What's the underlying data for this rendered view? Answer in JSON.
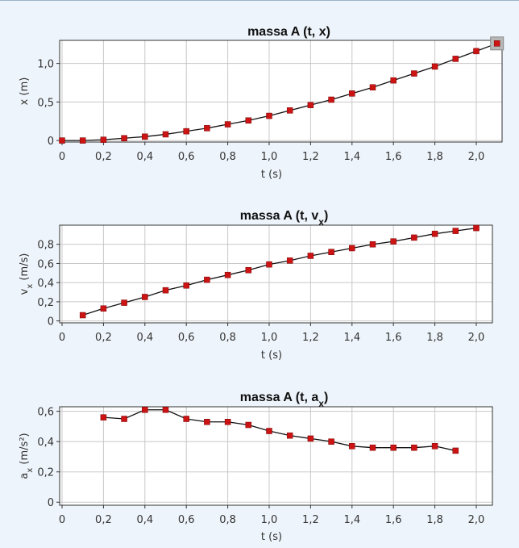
{
  "chart_data": [
    {
      "type": "line",
      "title_main": "massa A (t, x)",
      "title_sub": "",
      "xlabel": "t (s)",
      "ylabel_main": "x (m)",
      "ylabel_sub": "",
      "xlim": [
        0,
        2.1
      ],
      "ylim": [
        -0.02,
        1.3
      ],
      "xticks": [
        "0",
        "0,2",
        "0,4",
        "0,6",
        "0,8",
        "1,0",
        "1,2",
        "1,4",
        "1,6",
        "1,8",
        "2,0"
      ],
      "yticks": [
        {
          "v": 0,
          "label": "0"
        },
        {
          "v": 0.5,
          "label": "0,5"
        },
        {
          "v": 1.0,
          "label": "1,0"
        }
      ],
      "grid": true,
      "point_color": "#cc1414",
      "selected_point": {
        "x": 2.1,
        "y": 1.26
      },
      "x": [
        0,
        0.1,
        0.2,
        0.3,
        0.4,
        0.5,
        0.6,
        0.7,
        0.8,
        0.9,
        1.0,
        1.1,
        1.2,
        1.3,
        1.4,
        1.5,
        1.6,
        1.7,
        1.8,
        1.9,
        2.0,
        2.1
      ],
      "y": [
        0.0,
        0.0,
        0.01,
        0.03,
        0.05,
        0.08,
        0.12,
        0.16,
        0.21,
        0.26,
        0.32,
        0.39,
        0.46,
        0.53,
        0.61,
        0.69,
        0.78,
        0.87,
        0.96,
        1.06,
        1.16,
        1.26
      ]
    },
    {
      "type": "line",
      "title_main": "massa A (t, v",
      "title_sub": "x",
      "title_tail": ")",
      "xlabel": "t (s)",
      "ylabel_main": "v",
      "ylabel_sub": "x",
      "ylabel_tail": " (m/s)",
      "xlim": [
        0,
        2.1
      ],
      "ylim": [
        -0.02,
        1.0
      ],
      "xticks": [
        "0",
        "0,2",
        "0,4",
        "0,6",
        "0,8",
        "1,0",
        "1,2",
        "1,4",
        "1,6",
        "1,8",
        "2,0"
      ],
      "yticks": [
        {
          "v": 0,
          "label": "0"
        },
        {
          "v": 0.2,
          "label": "0,2"
        },
        {
          "v": 0.4,
          "label": "0,4"
        },
        {
          "v": 0.6,
          "label": "0,6"
        },
        {
          "v": 0.8,
          "label": "0,8"
        }
      ],
      "grid": true,
      "point_color": "#cc1414",
      "x": [
        0.1,
        0.2,
        0.3,
        0.4,
        0.5,
        0.6,
        0.7,
        0.8,
        0.9,
        1.0,
        1.1,
        1.2,
        1.3,
        1.4,
        1.5,
        1.6,
        1.7,
        1.8,
        1.9,
        2.0
      ],
      "y": [
        0.06,
        0.13,
        0.19,
        0.25,
        0.32,
        0.37,
        0.43,
        0.48,
        0.53,
        0.59,
        0.63,
        0.68,
        0.72,
        0.76,
        0.8,
        0.83,
        0.87,
        0.91,
        0.94,
        0.97
      ]
    },
    {
      "type": "line",
      "title_main": "massa A (t, a",
      "title_sub": "x",
      "title_tail": ")",
      "xlabel": "t (s)",
      "ylabel_main": "a",
      "ylabel_sub": "x",
      "ylabel_tail": " (m/s²)",
      "xlim": [
        0,
        2.1
      ],
      "ylim": [
        -0.02,
        0.63
      ],
      "xticks": [
        "0",
        "0,2",
        "0,4",
        "0,6",
        "0,8",
        "1,0",
        "1,2",
        "1,4",
        "1,6",
        "1,8",
        "2,0"
      ],
      "yticks": [
        {
          "v": 0,
          "label": "0"
        },
        {
          "v": 0.2,
          "label": "0,2"
        },
        {
          "v": 0.4,
          "label": "0,4"
        },
        {
          "v": 0.6,
          "label": "0,6"
        }
      ],
      "grid": true,
      "point_color": "#cc1414",
      "x": [
        0.2,
        0.3,
        0.4,
        0.5,
        0.6,
        0.7,
        0.8,
        0.9,
        1.0,
        1.1,
        1.2,
        1.3,
        1.4,
        1.5,
        1.6,
        1.7,
        1.8,
        1.9
      ],
      "y": [
        0.56,
        0.55,
        0.61,
        0.61,
        0.55,
        0.53,
        0.53,
        0.51,
        0.47,
        0.44,
        0.42,
        0.4,
        0.37,
        0.36,
        0.36,
        0.36,
        0.37,
        0.34
      ]
    }
  ]
}
